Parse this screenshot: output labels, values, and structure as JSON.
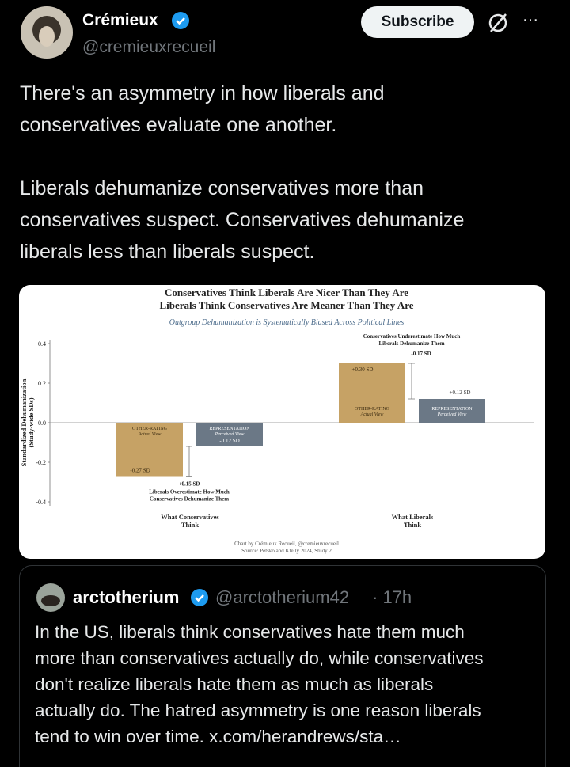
{
  "post": {
    "author": {
      "name": "Crémieux",
      "handle": "@cremieuxrecueil"
    },
    "subscribe": "Subscribe",
    "more": "···",
    "text": [
      [
        "There's an asymmetry in how liberals and",
        "conservatives evaluate one another."
      ],
      [
        "Liberals dehumanize conservatives more than",
        "conservatives suspect. Conservatives dehumanize",
        "liberals less than liberals suspect."
      ]
    ]
  },
  "chart_data": {
    "type": "bar",
    "title": [
      "Conservatives Think Liberals Are Nicer Than They Are",
      "Liberals Think Conservatives Are Meaner Than They Are"
    ],
    "subtitle": "Outgroup Dehumanization is Systematically Biased Across Political Lines",
    "y_label": [
      "Standardized Dehumanization",
      "(Study-wide SDs)"
    ],
    "categories": [
      [
        "What Conservatives",
        "Think"
      ],
      [
        "What Liberals",
        "Think"
      ]
    ],
    "series": [
      {
        "name": "OTHER-RATING",
        "subname": "Actual View",
        "color": "#c6a265",
        "values": [
          -0.27,
          0.3
        ],
        "value_labels": [
          "-0.27 SD",
          "+0.30 SD"
        ]
      },
      {
        "name": "REPRESENTATION",
        "subname": "Perceived View",
        "color": "#6b7886",
        "values": [
          -0.12,
          0.12
        ],
        "value_labels": [
          "-0.12 SD",
          "+0.12 SD"
        ]
      }
    ],
    "gaps": [
      {
        "value": 0.15,
        "label": "+0.15 SD",
        "note": [
          "Liberals Overestimate How Much",
          "Conservatives Dehumanize Them"
        ]
      },
      {
        "value": -0.17,
        "label": "-0.17 SD",
        "note": [
          "Conservatives Underestimate How Much",
          "Liberals Dehumanize Them"
        ]
      }
    ],
    "ylim": [
      -0.42,
      0.42
    ],
    "yticks": [
      0.4,
      0.2,
      {
        "value": 0,
        "label": "0.0"
      },
      -0.2,
      -0.4
    ],
    "footer": [
      "Chart by Crémieux Recueil, @cremieuxrecueil",
      "Source: Petsko and Kteily 2024, Study 2"
    ]
  },
  "quote": {
    "name": "arctotherium",
    "handle": "@arctotherium42",
    "time": "· 17h",
    "text": [
      "In the US, liberals think conservatives hate them much",
      "more than conservatives actually do, while conservatives",
      "don't realize liberals hate them as much as liberals",
      "actually do. The hatred asymmetry is one reason liberals",
      "tend to win over time.  x.com/herandrews/sta…"
    ]
  }
}
